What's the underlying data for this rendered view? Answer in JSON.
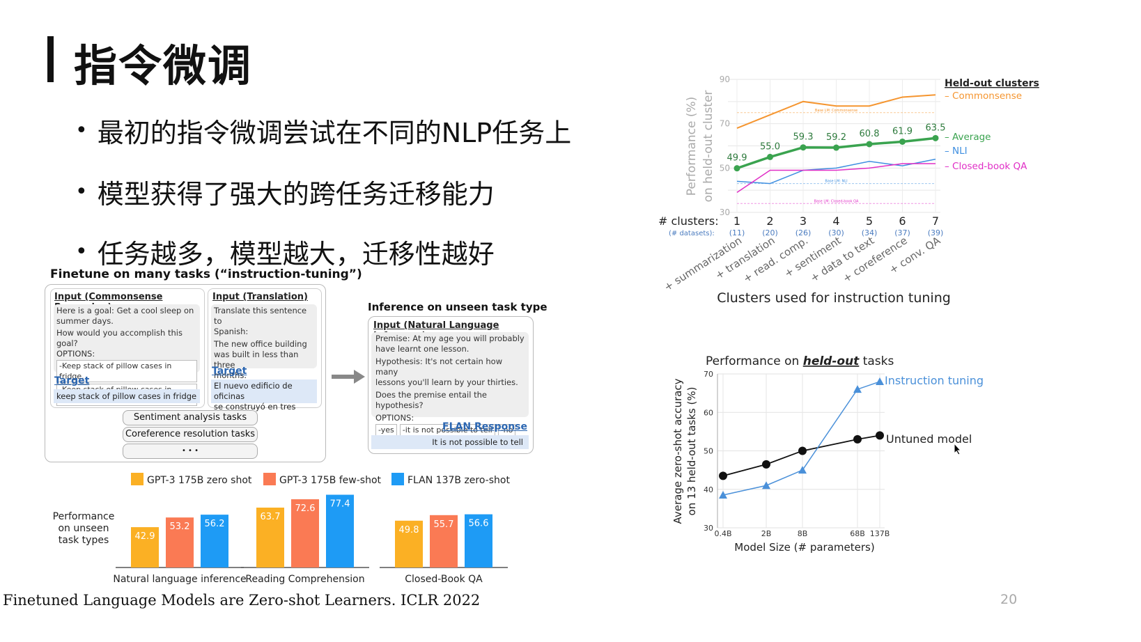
{
  "slide": {
    "title": "指令微调",
    "bullets": [
      "最初的指令微调尝试在不同的NLP任务上",
      "模型获得了强大的跨任务迁移能力",
      "任务越多，模型越大，迁移性越好"
    ],
    "footer": "Finetuned Language Models are Zero-shot Learners. ICLR 2022",
    "page_number": "20"
  },
  "figure": {
    "finetune_title": "Finetune on many tasks (“instruction-tuning”)",
    "card1": {
      "header": "Input (Commonsense Reasoning)",
      "lines": [
        "Here is a goal: Get a cool sleep on",
        "summer days.",
        "How would you accomplish this goal?",
        "OPTIONS:"
      ],
      "options": [
        "-Keep stack of pillow cases in fridge.",
        "-Keep stack of pillow cases in oven."
      ],
      "target_label": "Target",
      "target": "keep stack of pillow cases in fridge"
    },
    "card2": {
      "header": "Input (Translation)",
      "lines": [
        "Translate this sentence to",
        "Spanish:",
        "The new office building",
        "was built in less than three",
        "months."
      ],
      "target_label": "Target",
      "target": [
        "El nuevo edificio de oficinas",
        "se construyó en tres meses."
      ]
    },
    "pills": [
      "Sentiment analysis tasks",
      "Coreference resolution tasks",
      "• • •"
    ],
    "inference_title": "Inference on unseen task type",
    "card3": {
      "header": "Input (Natural Language Inference)",
      "lines": [
        "Premise: At my age you will probably",
        "have learnt one lesson.",
        "Hypothesis: It's not certain how many",
        "lessons you'll learn by your thirties.",
        "Does the premise entail the hypothesis?",
        "OPTIONS:"
      ],
      "options": [
        "-yes",
        "-it is not possible to tell",
        "-no"
      ],
      "response_label": "FLAN Response",
      "response": "It is not possible to tell"
    }
  },
  "colors": {
    "gpt3_zero": "#fbb024",
    "gpt3_few": "#fa7a54",
    "flan": "#1e9bf5",
    "green": "#3aa34f",
    "orange": "#f5952f",
    "blue_line": "#3f8fe0",
    "magenta": "#e02ec6",
    "tuned": "#4a90d9"
  },
  "bar_chart": {
    "chart_data": {
      "type": "bar",
      "categories": [
        "Natural language inference",
        "Reading Comprehension",
        "Closed-Book QA"
      ],
      "series": [
        {
          "name": "GPT-3 175B zero shot",
          "values": [
            42.9,
            63.7,
            49.8
          ]
        },
        {
          "name": "GPT-3 175B few-shot",
          "values": [
            53.2,
            72.6,
            55.7
          ]
        },
        {
          "name": "FLAN 137B zero-shot",
          "values": [
            56.2,
            77.4,
            56.6
          ]
        }
      ],
      "ylabel": "Performance on unseen task types",
      "ylabel_lines": [
        "Performance",
        "on unseen",
        "task types"
      ],
      "ylim": [
        0,
        90
      ],
      "legend": "top"
    }
  },
  "clusters_chart": {
    "chart_data": {
      "type": "line",
      "x": [
        1,
        2,
        3,
        4,
        5,
        6,
        7
      ],
      "x_prefix": "# clusters:",
      "datasets_prefix": "(# datasets):",
      "datasets": [
        "(11)",
        "(20)",
        "(26)",
        "(30)",
        "(34)",
        "(37)",
        "(39)"
      ],
      "cluster_names": [
        "+ summarization",
        "+ translation",
        "+ read. comp.",
        "+ sentiment",
        "+ data to text",
        "+ coreference",
        "+ conv. QA"
      ],
      "legend_title": "Held-out clusters",
      "series": [
        {
          "name": "Commonsense",
          "values": [
            68,
            74,
            80,
            78,
            78,
            82,
            83
          ]
        },
        {
          "name": "Average",
          "values": [
            49.9,
            55.0,
            59.3,
            59.2,
            60.8,
            61.9,
            63.5
          ],
          "labels": [
            "49.9",
            "55.0",
            "59.3",
            "59.2",
            "60.8",
            "61.9",
            "63.5"
          ]
        },
        {
          "name": "NLI",
          "values": [
            44,
            43,
            49,
            50,
            53,
            51,
            54
          ]
        },
        {
          "name": "Closed-book QA",
          "values": [
            39,
            49,
            49,
            49,
            50,
            52,
            52
          ]
        }
      ],
      "baselines": [
        {
          "name": "Base LM: Commonsense",
          "value": 75
        },
        {
          "name": "Base LM: NLI",
          "value": 43
        },
        {
          "name": "Base LM: Closed-book QA",
          "value": 34
        }
      ],
      "ylabel": "Performance (%) on held-out cluster",
      "ylabel_lines": [
        "Performance (%)",
        "on held-out cluster"
      ],
      "xlabel": "Clusters used for instruction tuning",
      "ylim": [
        30,
        90
      ],
      "yticks": [
        30,
        50,
        70,
        90
      ]
    }
  },
  "size_chart": {
    "chart_data": {
      "type": "line",
      "title_pre": "Performance on ",
      "title_em": "held-out",
      "title_post": " tasks",
      "categories": [
        "0.4B",
        "2B",
        "8B",
        "68B",
        "137B"
      ],
      "series": [
        {
          "name": "Instruction tuning",
          "values": [
            38.5,
            41,
            45,
            66,
            68
          ]
        },
        {
          "name": "Untuned model",
          "values": [
            43.5,
            46.5,
            50,
            53,
            54
          ]
        }
      ],
      "xlabel": "Model Size (# parameters)",
      "ylabel": "Average zero-shot accuracy on 13 held-out tasks (%)",
      "ylabel_lines": [
        "Average zero-shot accuracy",
        "on 13 held-out tasks (%)"
      ],
      "ylim": [
        30,
        70
      ],
      "yticks": [
        30,
        40,
        50,
        60,
        70
      ]
    }
  }
}
